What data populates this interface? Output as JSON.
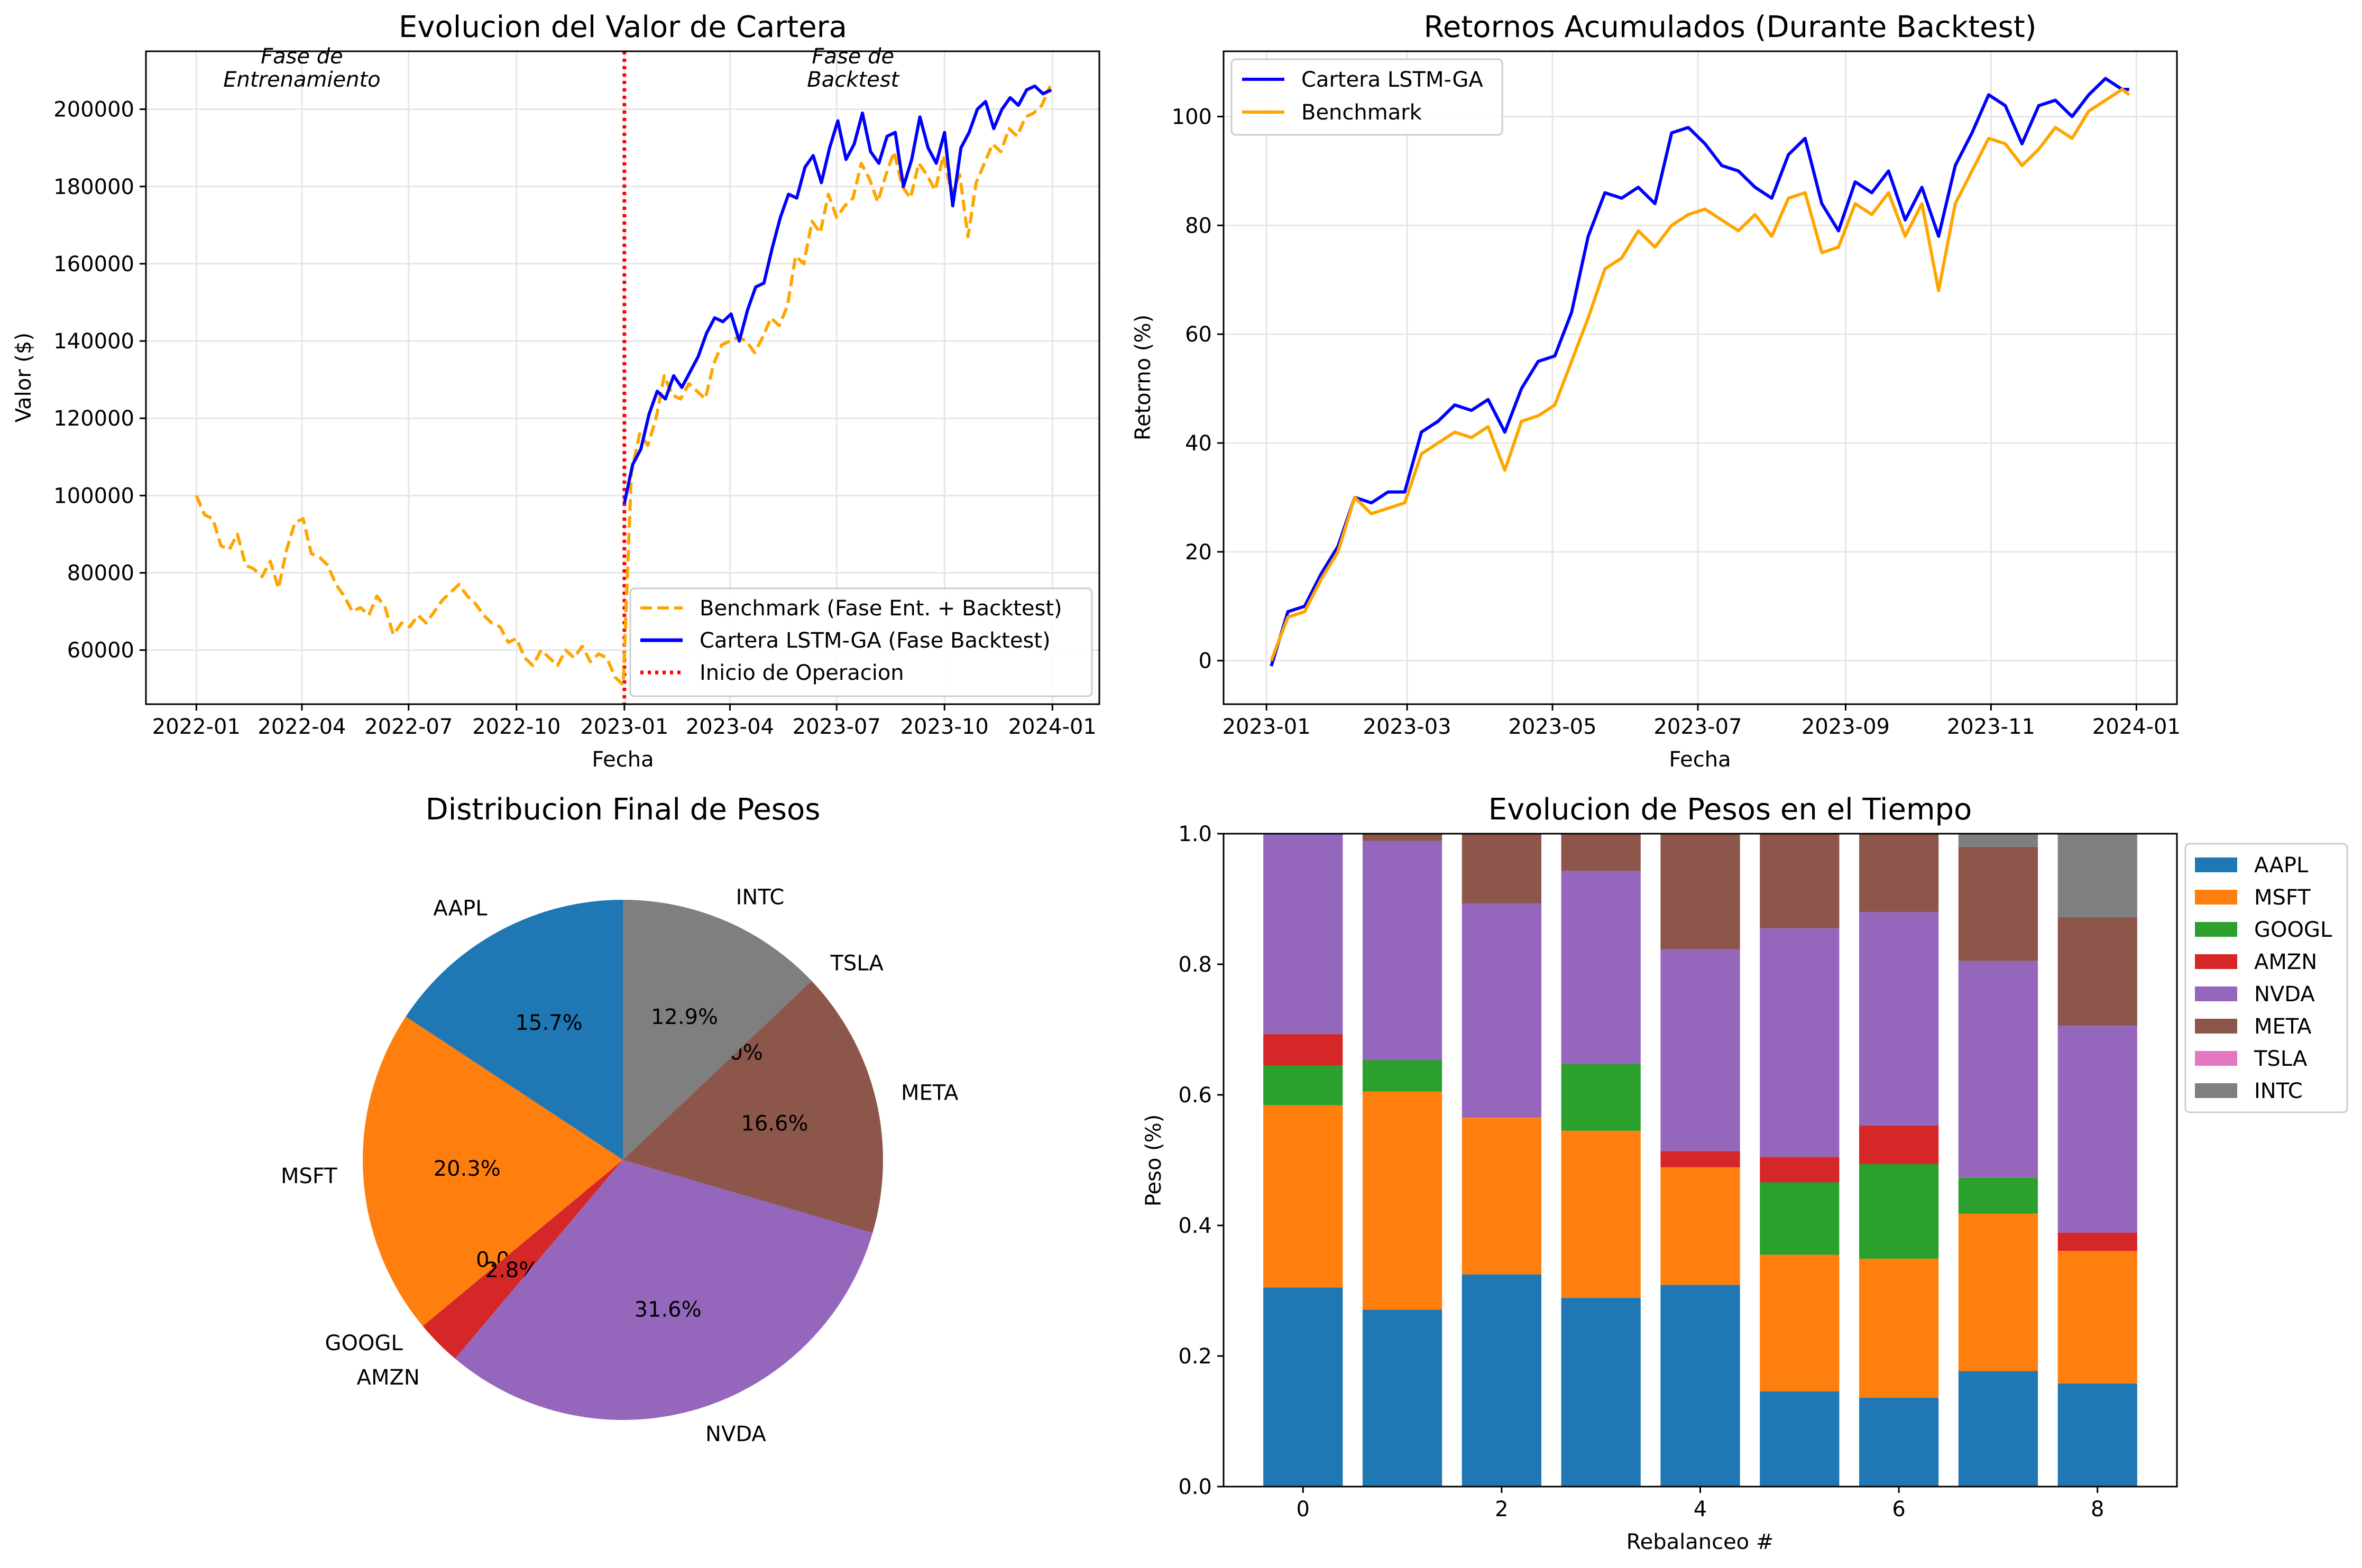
{
  "chart_data": [
    {
      "type": "line",
      "title": "Evolucion del Valor de Cartera",
      "xlabel": "Fecha",
      "ylabel": "Valor ($)",
      "x_ticks": [
        "2022-01",
        "2022-04",
        "2022-07",
        "2022-10",
        "2023-01",
        "2023-04",
        "2023-07",
        "2023-10",
        "2024-01"
      ],
      "y_ticks": [
        "60000",
        "80000",
        "100000",
        "120000",
        "140000",
        "160000",
        "180000",
        "200000"
      ],
      "xlim": [
        "2021-11-19",
        "2024-02-10"
      ],
      "ylim": [
        46000,
        215000
      ],
      "grid": true,
      "legend_position": "lower-right",
      "annotations": [
        {
          "text": "Fase de\nEntrenamiento",
          "x": "2022-04-01",
          "y": 208000
        },
        {
          "text": "Fase de\nBacktest",
          "x": "2023-07-15",
          "y": 208000
        }
      ],
      "vline": {
        "x": "2023-01-01",
        "label": "Inicio de Operacion",
        "color": "#ff0000"
      },
      "series": [
        {
          "name": "Benchmark (Fase Ent. + Backtest)",
          "style": "dashed",
          "color": "#ffa500",
          "x": [
            "2022-01-01",
            "2022-01-08",
            "2022-01-15",
            "2022-01-22",
            "2022-01-29",
            "2022-02-05",
            "2022-02-12",
            "2022-02-19",
            "2022-02-26",
            "2022-03-05",
            "2022-03-12",
            "2022-03-19",
            "2022-03-26",
            "2022-04-02",
            "2022-04-09",
            "2022-04-16",
            "2022-04-23",
            "2022-04-30",
            "2022-05-07",
            "2022-05-14",
            "2022-05-21",
            "2022-05-28",
            "2022-06-04",
            "2022-06-11",
            "2022-06-18",
            "2022-06-25",
            "2022-07-02",
            "2022-07-09",
            "2022-07-16",
            "2022-07-23",
            "2022-07-30",
            "2022-08-06",
            "2022-08-13",
            "2022-08-20",
            "2022-08-27",
            "2022-09-03",
            "2022-09-10",
            "2022-09-17",
            "2022-09-24",
            "2022-10-01",
            "2022-10-08",
            "2022-10-15",
            "2022-10-22",
            "2022-10-29",
            "2022-11-05",
            "2022-11-12",
            "2022-11-19",
            "2022-11-26",
            "2022-12-03",
            "2022-12-10",
            "2022-12-17",
            "2022-12-24",
            "2022-12-31",
            "2023-01-07",
            "2023-01-14",
            "2023-01-21",
            "2023-01-28",
            "2023-02-04",
            "2023-02-11",
            "2023-02-18",
            "2023-02-25",
            "2023-03-04",
            "2023-03-11",
            "2023-03-18",
            "2023-03-25",
            "2023-04-01",
            "2023-04-08",
            "2023-04-15",
            "2023-04-22",
            "2023-04-29",
            "2023-05-06",
            "2023-05-13",
            "2023-05-20",
            "2023-05-27",
            "2023-06-03",
            "2023-06-10",
            "2023-06-17",
            "2023-06-24",
            "2023-07-01",
            "2023-07-08",
            "2023-07-15",
            "2023-07-22",
            "2023-07-29",
            "2023-08-05",
            "2023-08-12",
            "2023-08-19",
            "2023-08-26",
            "2023-09-02",
            "2023-09-09",
            "2023-09-16",
            "2023-09-23",
            "2023-09-30",
            "2023-10-07",
            "2023-10-14",
            "2023-10-21",
            "2023-10-28",
            "2023-11-04",
            "2023-11-11",
            "2023-11-18",
            "2023-11-25",
            "2023-12-02",
            "2023-12-09",
            "2023-12-16",
            "2023-12-23",
            "2023-12-30"
          ],
          "y": [
            100000,
            95000,
            94000,
            87000,
            86000,
            90000,
            82000,
            81000,
            79000,
            83000,
            76000,
            86000,
            93000,
            94000,
            85000,
            84000,
            82000,
            77000,
            74000,
            70000,
            71000,
            69000,
            74000,
            71000,
            64000,
            67000,
            66000,
            69000,
            67000,
            70000,
            73000,
            75000,
            77000,
            74000,
            72000,
            69000,
            67000,
            66000,
            62000,
            63000,
            58000,
            56000,
            60000,
            58000,
            56000,
            60000,
            58000,
            61000,
            57000,
            59000,
            58000,
            53000,
            51000,
            106000,
            116000,
            113000,
            120000,
            131000,
            126000,
            125000,
            129000,
            127000,
            125000,
            134000,
            139000,
            140000,
            141000,
            140000,
            137000,
            141000,
            146000,
            144000,
            149000,
            162000,
            160000,
            171000,
            168000,
            178000,
            172000,
            175000,
            177000,
            186000,
            182000,
            176000,
            183000,
            189000,
            180000,
            177000,
            186000,
            183000,
            179000,
            188000,
            178000,
            183000,
            167000,
            181000,
            186000,
            191000,
            189000,
            195000,
            193000,
            198000,
            199000,
            201000,
            206000
          ]
        },
        {
          "name": "Cartera LSTM-GA (Fase Backtest)",
          "style": "solid",
          "color": "#0000ff",
          "x": [
            "2023-01-01",
            "2023-01-08",
            "2023-01-15",
            "2023-01-22",
            "2023-01-29",
            "2023-02-05",
            "2023-02-12",
            "2023-02-19",
            "2023-02-26",
            "2023-03-05",
            "2023-03-12",
            "2023-03-19",
            "2023-03-26",
            "2023-04-02",
            "2023-04-09",
            "2023-04-16",
            "2023-04-23",
            "2023-04-30",
            "2023-05-07",
            "2023-05-14",
            "2023-05-21",
            "2023-05-28",
            "2023-06-04",
            "2023-06-11",
            "2023-06-18",
            "2023-06-25",
            "2023-07-02",
            "2023-07-09",
            "2023-07-16",
            "2023-07-23",
            "2023-07-30",
            "2023-08-06",
            "2023-08-13",
            "2023-08-20",
            "2023-08-27",
            "2023-09-03",
            "2023-09-10",
            "2023-09-17",
            "2023-09-24",
            "2023-10-01",
            "2023-10-08",
            "2023-10-15",
            "2023-10-22",
            "2023-10-29",
            "2023-11-05",
            "2023-11-12",
            "2023-11-19",
            "2023-11-26",
            "2023-12-03",
            "2023-12-10",
            "2023-12-17",
            "2023-12-24",
            "2023-12-31"
          ],
          "y": [
            98000,
            108000,
            112000,
            121000,
            127000,
            125000,
            131000,
            128000,
            132000,
            136000,
            142000,
            146000,
            145000,
            147000,
            140000,
            148000,
            154000,
            155000,
            164000,
            172000,
            178000,
            177000,
            185000,
            188000,
            181000,
            190000,
            197000,
            187000,
            191000,
            199000,
            189000,
            186000,
            193000,
            194000,
            180000,
            187000,
            198000,
            190000,
            186000,
            194000,
            175000,
            190000,
            194000,
            200000,
            202000,
            195000,
            200000,
            203000,
            201000,
            205000,
            206000,
            204000,
            205000
          ]
        }
      ]
    },
    {
      "type": "line",
      "title": "Retornos Acumulados (Durante Backtest)",
      "xlabel": "Fecha",
      "ylabel": "Retorno (%)",
      "x_ticks": [
        "2023-01",
        "2023-03",
        "2023-05",
        "2023-07",
        "2023-09",
        "2023-11",
        "2024-01"
      ],
      "y_ticks": [
        "0",
        "20",
        "40",
        "60",
        "80",
        "100"
      ],
      "xlim": [
        "2022-12-14",
        "2024-01-18"
      ],
      "ylim": [
        -8,
        112
      ],
      "grid": true,
      "legend_position": "upper-left",
      "series": [
        {
          "name": "Cartera LSTM-GA",
          "color": "#0000ff",
          "x": [
            "2023-01-03",
            "2023-01-10",
            "2023-01-17",
            "2023-01-24",
            "2023-01-31",
            "2023-02-07",
            "2023-02-14",
            "2023-02-21",
            "2023-02-28",
            "2023-03-07",
            "2023-03-14",
            "2023-03-21",
            "2023-03-28",
            "2023-04-04",
            "2023-04-11",
            "2023-04-18",
            "2023-04-25",
            "2023-05-02",
            "2023-05-09",
            "2023-05-16",
            "2023-05-23",
            "2023-05-30",
            "2023-06-06",
            "2023-06-13",
            "2023-06-20",
            "2023-06-27",
            "2023-07-04",
            "2023-07-11",
            "2023-07-18",
            "2023-07-25",
            "2023-08-01",
            "2023-08-08",
            "2023-08-15",
            "2023-08-22",
            "2023-08-29",
            "2023-09-05",
            "2023-09-12",
            "2023-09-19",
            "2023-09-26",
            "2023-10-03",
            "2023-10-10",
            "2023-10-17",
            "2023-10-24",
            "2023-10-31",
            "2023-11-07",
            "2023-11-14",
            "2023-11-21",
            "2023-11-28",
            "2023-12-05",
            "2023-12-12",
            "2023-12-19",
            "2023-12-26",
            "2023-12-29"
          ],
          "y": [
            -1,
            9,
            10,
            16,
            21,
            30,
            29,
            31,
            31,
            42,
            44,
            47,
            46,
            48,
            42,
            50,
            55,
            56,
            64,
            78,
            86,
            85,
            87,
            84,
            97,
            98,
            95,
            91,
            90,
            87,
            85,
            93,
            96,
            84,
            79,
            88,
            86,
            90,
            81,
            87,
            78,
            91,
            97,
            104,
            102,
            95,
            102,
            103,
            100,
            104,
            107,
            105,
            105
          ]
        },
        {
          "name": "Benchmark",
          "color": "#ffa500",
          "x": [
            "2023-01-03",
            "2023-01-10",
            "2023-01-17",
            "2023-01-24",
            "2023-01-31",
            "2023-02-07",
            "2023-02-14",
            "2023-02-21",
            "2023-02-28",
            "2023-03-07",
            "2023-03-14",
            "2023-03-21",
            "2023-03-28",
            "2023-04-04",
            "2023-04-11",
            "2023-04-18",
            "2023-04-25",
            "2023-05-02",
            "2023-05-09",
            "2023-05-16",
            "2023-05-23",
            "2023-05-30",
            "2023-06-06",
            "2023-06-13",
            "2023-06-20",
            "2023-06-27",
            "2023-07-04",
            "2023-07-11",
            "2023-07-18",
            "2023-07-25",
            "2023-08-01",
            "2023-08-08",
            "2023-08-15",
            "2023-08-22",
            "2023-08-29",
            "2023-09-05",
            "2023-09-12",
            "2023-09-19",
            "2023-09-26",
            "2023-10-03",
            "2023-10-10",
            "2023-10-17",
            "2023-10-24",
            "2023-10-31",
            "2023-11-07",
            "2023-11-14",
            "2023-11-21",
            "2023-11-28",
            "2023-12-05",
            "2023-12-12",
            "2023-12-19",
            "2023-12-26",
            "2023-12-29"
          ],
          "y": [
            0,
            8,
            9,
            15,
            20,
            30,
            27,
            28,
            29,
            38,
            40,
            42,
            41,
            43,
            35,
            44,
            45,
            47,
            55,
            63,
            72,
            74,
            79,
            76,
            80,
            82,
            83,
            81,
            79,
            82,
            78,
            85,
            86,
            75,
            76,
            84,
            82,
            86,
            78,
            84,
            68,
            84,
            90,
            96,
            95,
            91,
            94,
            98,
            96,
            101,
            103,
            105,
            104
          ]
        }
      ]
    },
    {
      "type": "pie",
      "title": "Distribucion Final de Pesos",
      "labels": [
        "AAPL",
        "MSFT",
        "GOOGL",
        "AMZN",
        "NVDA",
        "META",
        "TSLA",
        "INTC"
      ],
      "values": [
        15.7,
        20.3,
        0.0,
        2.8,
        31.6,
        16.6,
        0.0,
        12.9
      ],
      "value_labels": [
        "15.7%",
        "20.3%",
        "0.0%",
        "2.8%",
        "31.6%",
        "16.6%",
        "0.0%",
        "12.9%"
      ],
      "colors": [
        "#1f77b4",
        "#ff7f0e",
        "#2ca02c",
        "#d62728",
        "#9467bd",
        "#8c564b",
        "#e377c2",
        "#7f7f7f"
      ]
    },
    {
      "type": "bar",
      "stacked": true,
      "title": "Evolucion de Pesos en el Tiempo",
      "xlabel": "Rebalanceo #",
      "ylabel": "Peso (%)",
      "categories": [
        0,
        1,
        2,
        3,
        4,
        5,
        6,
        7,
        8
      ],
      "x_ticks": [
        "0",
        "2",
        "4",
        "6",
        "8"
      ],
      "y_ticks": [
        "0.0",
        "0.2",
        "0.4",
        "0.6",
        "0.8",
        "1.0"
      ],
      "ylim": [
        0,
        1
      ],
      "legend_position": "upper-right-outside",
      "series": [
        {
          "name": "AAPL",
          "color": "#1f77b4",
          "values": [
            0.305,
            0.271,
            0.325,
            0.289,
            0.309,
            0.146,
            0.136,
            0.177,
            0.158
          ]
        },
        {
          "name": "MSFT",
          "color": "#ff7f0e",
          "values": [
            0.279,
            0.334,
            0.24,
            0.256,
            0.18,
            0.209,
            0.213,
            0.241,
            0.203
          ]
        },
        {
          "name": "GOOGL",
          "color": "#2ca02c",
          "values": [
            0.061,
            0.048,
            0.0,
            0.102,
            0.0,
            0.111,
            0.145,
            0.055,
            0.0
          ]
        },
        {
          "name": "AMZN",
          "color": "#d62728",
          "values": [
            0.048,
            0.0,
            0.0,
            0.0,
            0.025,
            0.039,
            0.059,
            0.0,
            0.028
          ]
        },
        {
          "name": "NVDA",
          "color": "#9467bd",
          "values": [
            0.307,
            0.336,
            0.328,
            0.296,
            0.309,
            0.35,
            0.327,
            0.332,
            0.317
          ]
        },
        {
          "name": "META",
          "color": "#8c564b",
          "values": [
            0.0,
            0.011,
            0.107,
            0.057,
            0.177,
            0.145,
            0.12,
            0.175,
            0.166
          ]
        },
        {
          "name": "TSLA",
          "color": "#e377c2",
          "values": [
            0,
            0,
            0,
            0,
            0,
            0,
            0,
            0,
            0
          ]
        },
        {
          "name": "INTC",
          "color": "#7f7f7f",
          "values": [
            0.0,
            0.0,
            0.0,
            0.0,
            0.0,
            0.0,
            0.0,
            0.02,
            0.128
          ]
        }
      ]
    }
  ]
}
